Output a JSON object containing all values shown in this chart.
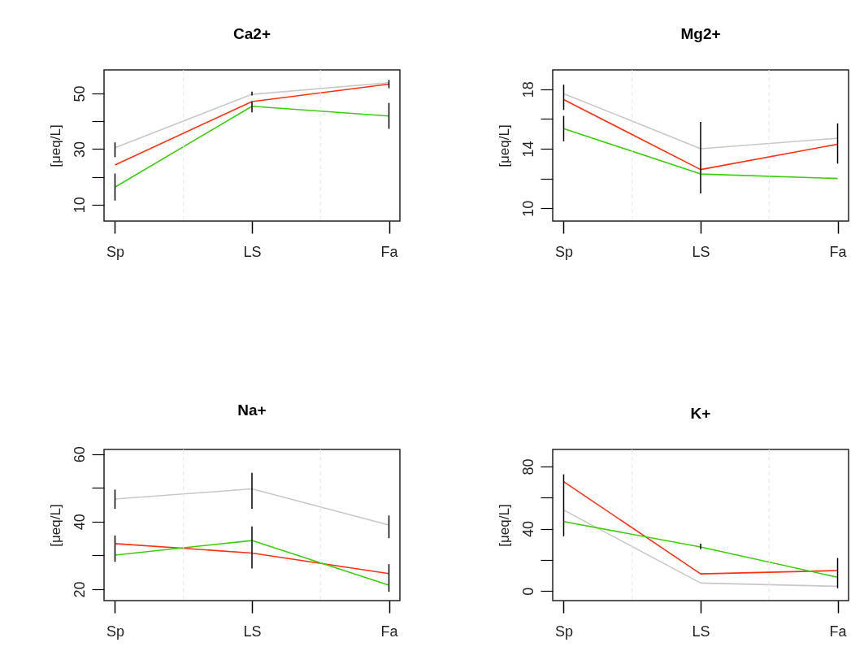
{
  "chart_data": [
    {
      "type": "line",
      "title": "Ca2+",
      "ylabel": "[μeq/L]",
      "categories": [
        "Sp",
        "LS",
        "Fa"
      ],
      "ylim": [
        4.1,
        58.5
      ],
      "yticks": [
        10,
        {
          "value": 20,
          "label": null
        },
        30,
        {
          "value": 40,
          "label": null
        },
        50
      ],
      "grid": "x",
      "series": [
        {
          "color": "#c8c8c8",
          "values": [
            30.5,
            49.7,
            53.9
          ],
          "errors": [
            [
              27.1,
              32.4
            ],
            [
              49.3,
              50.7
            ],
            [
              51.9,
              54.9
            ]
          ]
        },
        {
          "color": "#ff3010",
          "values": [
            24.3,
            47.1,
            53.4
          ]
        },
        {
          "color": "#3ccd0a",
          "values": [
            16.3,
            45.4,
            41.9
          ],
          "errors": [
            [
              11.5,
              21.2
            ],
            [
              43.2,
              47.1
            ],
            [
              37.3,
              46.6
            ]
          ]
        }
      ]
    },
    {
      "type": "line",
      "title": "Mg2+",
      "ylabel": "[μeq/L]",
      "categories": [
        "Sp",
        "LS",
        "Fa"
      ],
      "ylim": [
        9.14,
        19.29
      ],
      "yticks": [
        10,
        {
          "value": 12,
          "label": null
        },
        14,
        {
          "value": 16,
          "label": null
        },
        18
      ],
      "grid": "x",
      "series": [
        {
          "color": "#c8c8c8",
          "values": [
            17.7,
            14.0,
            14.7
          ],
          "errors": [
            [
              16.6,
              18.3
            ],
            [
              11.0,
              15.8
            ],
            null
          ]
        },
        {
          "color": "#ff3010",
          "values": [
            17.3,
            12.6,
            14.3
          ],
          "errors": [
            null,
            null,
            [
              13.0,
              15.7
            ]
          ]
        },
        {
          "color": "#3ccd0a",
          "values": [
            15.35,
            12.3,
            12.0
          ],
          "errors": [
            [
              14.5,
              16.2
            ],
            null,
            null
          ]
        }
      ]
    },
    {
      "type": "line",
      "title": "Na+",
      "ylabel": "[μeq/L]",
      "categories": [
        "Sp",
        "LS",
        "Fa"
      ],
      "ylim": [
        16.6,
        61.4
      ],
      "yticks": [
        20,
        {
          "value": 30,
          "label": null
        },
        40,
        {
          "value": 50,
          "label": null
        },
        60
      ],
      "grid": "x",
      "series": [
        {
          "color": "#c8c8c8",
          "values": [
            46.7,
            49.7,
            39.0
          ],
          "errors": [
            [
              43.8,
              49.5
            ],
            [
              43.8,
              54.5
            ],
            [
              35.1,
              41.8
            ]
          ]
        },
        {
          "color": "#ff3010",
          "values": [
            33.5,
            30.7,
            24.6
          ],
          "errors": [
            [
              28.1,
              35.9
            ],
            null,
            null
          ]
        },
        {
          "color": "#3ccd0a",
          "values": [
            30.1,
            34.4,
            21.2
          ],
          "errors": [
            null,
            [
              26.1,
              38.6
            ],
            [
              19.2,
              27.4
            ]
          ]
        }
      ]
    },
    {
      "type": "line",
      "title": "K+",
      "ylabel": "[μeq/L]",
      "categories": [
        "Sp",
        "LS",
        "Fa"
      ],
      "ylim": [
        -6.2,
        91
      ],
      "yticks": [
        0,
        {
          "value": 20,
          "label": null
        },
        40,
        {
          "value": 60,
          "label": null
        },
        80
      ],
      "grid": "x",
      "series": [
        {
          "color": "#c8c8c8",
          "values": [
            52,
            5.1,
            3.0
          ],
          "errors": [
            [
              35.2,
              75
            ],
            null,
            null
          ]
        },
        {
          "color": "#ff3010",
          "values": [
            70.3,
            11,
            13.1
          ],
          "errors": [
            null,
            null,
            [
              1.8,
              21.2
            ]
          ]
        },
        {
          "color": "#3ccd0a",
          "values": [
            44.6,
            28.3,
            8.8
          ],
          "errors": [
            null,
            [
              26.9,
              30.4
            ],
            null
          ]
        }
      ]
    }
  ]
}
